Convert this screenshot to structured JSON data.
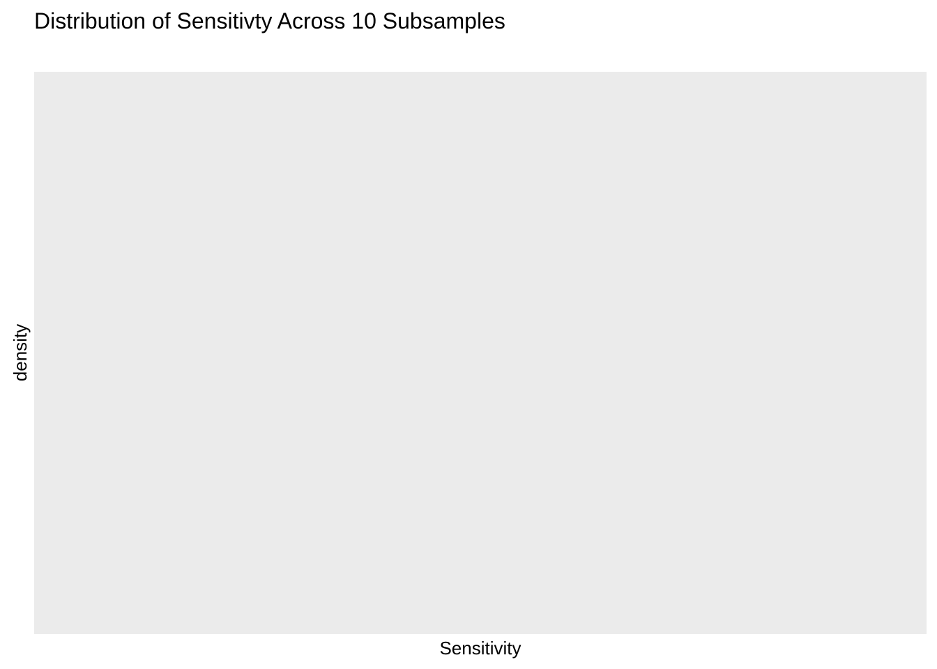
{
  "chart_data": {
    "type": "area",
    "title": "Distribution of Sensitivty Across 10 Subsamples",
    "xlabel": "Sensitivity",
    "ylabel": "density",
    "series": [],
    "grid": false,
    "panel_background": "#ebebeb"
  }
}
